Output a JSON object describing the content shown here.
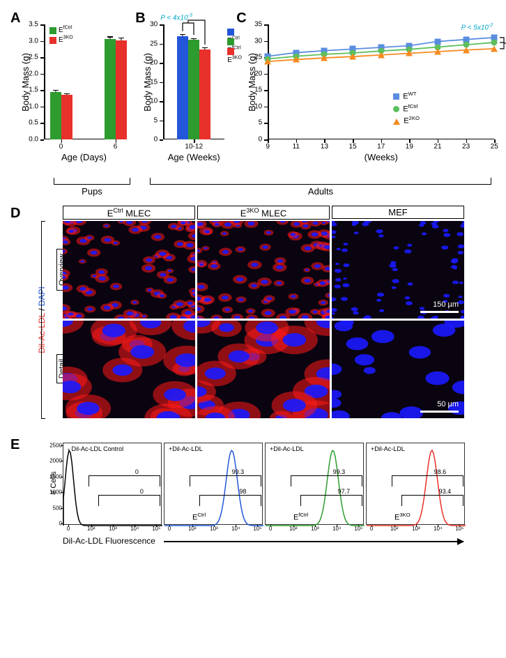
{
  "colors": {
    "green": "#2e9b2e",
    "red": "#e8312a",
    "blue": "#2356d8",
    "orange": "#f58a1f",
    "lightgreen": "#5cbf5c",
    "lightblue": "#5a8de0",
    "cyan": "#00a7c7",
    "dapi_blue": "#1a1aff",
    "dil_red": "#ff1a1a",
    "bg_black": "#0a0410"
  },
  "A": {
    "label": "A",
    "y_label": "Body Mass (g)",
    "x_label": "Age (Days)",
    "y_max": 3.5,
    "y_step": 0.5,
    "x_cats": [
      "0",
      "6"
    ],
    "legend": [
      {
        "key": "EfCtrl",
        "label_html": "E<sup>fCtrl</sup>",
        "color": "green"
      },
      {
        "key": "E3KO",
        "label_html": "E<sup>3KO</sup>",
        "color": "red"
      }
    ],
    "bars": [
      {
        "cat": "0",
        "group": "EfCtrl",
        "val": 1.45,
        "err": 0.06
      },
      {
        "cat": "0",
        "group": "E3KO",
        "val": 1.35,
        "err": 0.05
      },
      {
        "cat": "6",
        "group": "EfCtrl",
        "val": 3.05,
        "err": 0.08
      },
      {
        "cat": "6",
        "group": "E3KO",
        "val": 3.02,
        "err": 0.08
      }
    ]
  },
  "B": {
    "label": "B",
    "y_label": "Body Mass (g)",
    "x_label": "Age (Weeks)",
    "y_max": 30,
    "y_step": 5,
    "x_cats": [
      "10-12"
    ],
    "pval_html": "<i>P</i> < 4x10<sup>-3</sup>",
    "pval_color": "cyan",
    "legend": [
      {
        "key": "ECtrl",
        "label_html": "E<sup>Ctrl</sup>",
        "color": "blue"
      },
      {
        "key": "EfCtrl",
        "label_html": "E<sup>fCtrl</sup>",
        "color": "green"
      },
      {
        "key": "E3KO",
        "label_html": "E<sup>3KO</sup>",
        "color": "red"
      }
    ],
    "bars": [
      {
        "group": "ECtrl",
        "val": 27.0,
        "err": 0.5
      },
      {
        "group": "EfCtrl",
        "val": 26.0,
        "err": 0.4
      },
      {
        "group": "E3KO",
        "val": 23.5,
        "err": 0.5
      }
    ]
  },
  "C": {
    "label": "C",
    "y_label": "Body Mass (g)",
    "x_label": "(Weeks)",
    "y_max": 35,
    "y_step": 5,
    "x_min": 9,
    "x_max": 25,
    "x_step": 2,
    "pval_html": "<i>P</i> < 5x10<sup>-2</sup>",
    "pval_color": "cyan",
    "legend": [
      {
        "key": "EWT",
        "label_html": "E<sup>WT</sup>",
        "color": "lightblue",
        "shape": "sq"
      },
      {
        "key": "EfCtrl",
        "label_html": "E<sup>fCtrl</sup>",
        "color": "lightgreen",
        "shape": "cir"
      },
      {
        "key": "E2KO",
        "label_html": "E<sup>2KO</sup>",
        "color": "orange",
        "shape": "tri"
      }
    ],
    "series": {
      "EWT": [
        25.3,
        26.4,
        27.0,
        27.5,
        28.0,
        28.5,
        29.8,
        30.4,
        31.0
      ],
      "EfCtrl": [
        24.5,
        25.3,
        25.9,
        26.3,
        26.9,
        27.4,
        28.1,
        28.8,
        29.5
      ],
      "E2KO": [
        23.7,
        24.3,
        24.8,
        25.2,
        25.7,
        26.2,
        26.7,
        27.2,
        27.6
      ]
    },
    "xvals": [
      9,
      11,
      13,
      15,
      17,
      19,
      21,
      23,
      25
    ]
  },
  "group_brackets": {
    "pups": "Pups",
    "adults": "Adults"
  },
  "D": {
    "label": "D",
    "cols_html": [
      "E<sup>Ctrl</sup>  MLEC",
      "E<sup>3KO</sup>  MLEC",
      "MEF"
    ],
    "rows": [
      "Overview",
      "Detail"
    ],
    "side_html": "<span style='color:#e8312a'>Dil-Ac-LDL</span> / <span style='color:#2356d8'>DAPI</span>",
    "scale1": "150 µm",
    "scale2": "50 µm"
  },
  "E": {
    "label": "E",
    "y_label": "# Cells",
    "x_label": "Dil-Ac-LDL Fluorescence",
    "y_max": 2500,
    "y_step": 500,
    "panels": [
      {
        "title": "- Dil-Ac-LDL Control",
        "color": "#000",
        "peak_x": 0.06,
        "genotype_html": "",
        "g1": "0",
        "g2": "0"
      },
      {
        "title": "+Dil-Ac-LDL",
        "color": "blue",
        "peak_x": 0.68,
        "genotype_html": "E<sup>Ctrl</sup>",
        "g1": "99.3",
        "g2": "98"
      },
      {
        "title": "+Dil-Ac-LDL",
        "color": "green",
        "peak_x": 0.68,
        "genotype_html": "E<sup>fCtrl</sup>",
        "g1": "99.3",
        "g2": "97.7"
      },
      {
        "title": "+Dil-Ac-LDL",
        "color": "red",
        "peak_x": 0.66,
        "genotype_html": "E<sup>3KO</sup>",
        "g1": "98.6",
        "g2": "93.4"
      }
    ],
    "log_ticks": [
      "0",
      "10²",
      "10³",
      "10⁴",
      "10⁵"
    ]
  }
}
